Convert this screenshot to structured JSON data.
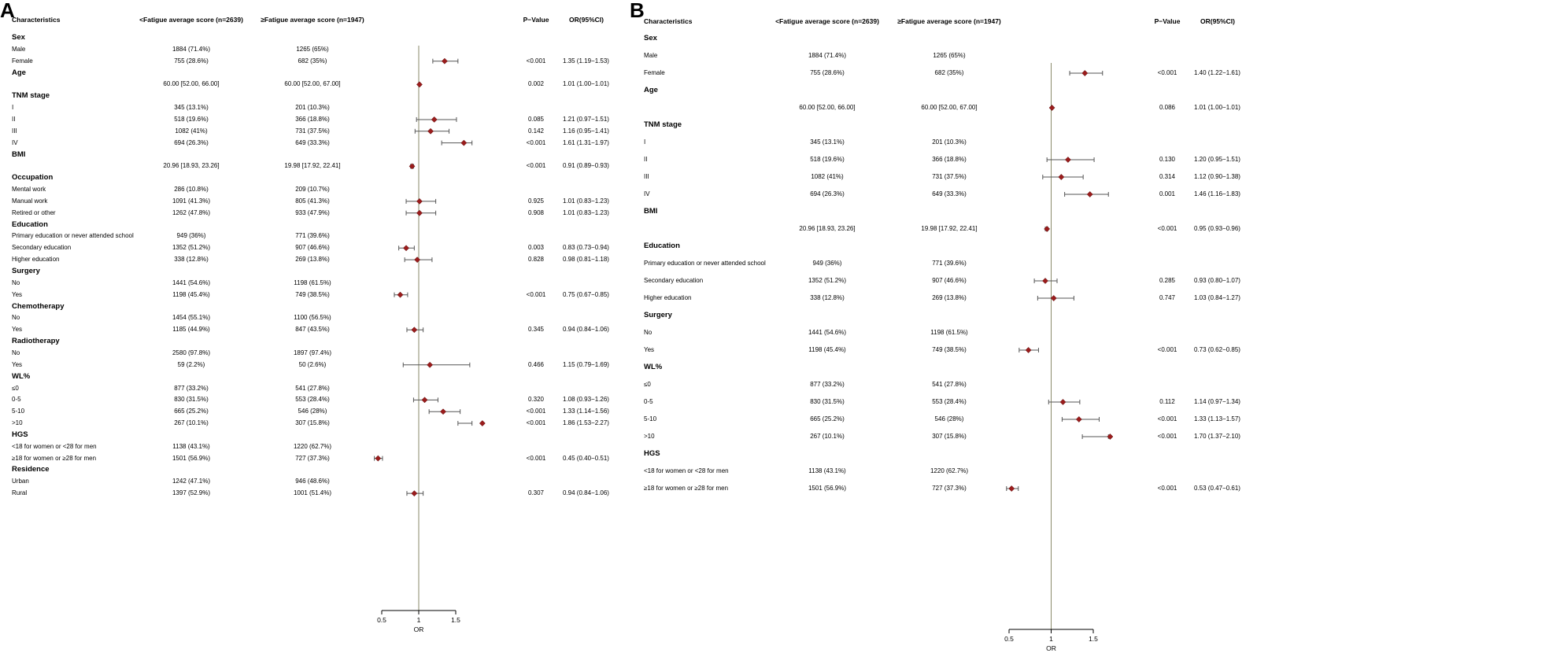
{
  "marker_color": "#9b1c1c",
  "ci_color": "#555555",
  "ref_line_color": "#8a8a6a",
  "panels": [
    {
      "letter": "A",
      "headers": {
        "characteristics": "Characteristics",
        "low": "<Fatigue average score (n=2639)",
        "high": "≥Fatigue average score (n=1947)",
        "p": "P−Value",
        "or": "OR(95%CI)"
      },
      "axis": {
        "label": "OR",
        "ticks": [
          "0.5",
          "1",
          "1.5"
        ],
        "range": [
          0.5,
          1.5
        ]
      },
      "rows": [
        {
          "label": "Sex",
          "section": true
        },
        {
          "label": "Male",
          "low": "1884 (71.4%)",
          "high": "1265 (65%)"
        },
        {
          "label": "Female",
          "low": "755 (28.6%)",
          "high": "682 (35%)",
          "p": "<0.001",
          "or_text": "1.35 (1.19−1.53)"
        },
        {
          "label": "Age",
          "section": true
        },
        {
          "label": "",
          "low": "60.00 [52.00, 66.00]",
          "high": "60.00 [52.00, 67.00]",
          "p": "0.002",
          "or_text": "1.01 (1.00−1.01)"
        },
        {
          "label": "TNM stage",
          "section": true
        },
        {
          "label": "I",
          "low": "345 (13.1%)",
          "high": "201 (10.3%)"
        },
        {
          "label": "II",
          "low": "518 (19.6%)",
          "high": "366 (18.8%)",
          "p": "0.085",
          "or_text": "1.21 (0.97−1.51)"
        },
        {
          "label": "III",
          "low": "1082 (41%)",
          "high": "731 (37.5%)",
          "p": "0.142",
          "or_text": "1.16 (0.95−1.41)"
        },
        {
          "label": "IV",
          "low": "694 (26.3%)",
          "high": "649 (33.3%)",
          "p": "<0.001",
          "or_text": "1.61 (1.31−1.97)"
        },
        {
          "label": "BMI",
          "section": true
        },
        {
          "label": "",
          "low": "20.96 [18.93, 23.26]",
          "high": "19.98 [17.92, 22.41]",
          "p": "<0.001",
          "or_text": "0.91 (0.89−0.93)"
        },
        {
          "label": "Occupation",
          "section": true
        },
        {
          "label": "Mental work",
          "low": "286 (10.8%)",
          "high": "209 (10.7%)"
        },
        {
          "label": "Manual work",
          "low": "1091 (41.3%)",
          "high": "805 (41.3%)",
          "p": "0.925",
          "or_text": "1.01 (0.83−1.23)"
        },
        {
          "label": "Retired or other",
          "low": "1262 (47.8%)",
          "high": "933 (47.9%)",
          "p": "0.908",
          "or_text": "1.01 (0.83−1.23)"
        },
        {
          "label": "Education",
          "section": true
        },
        {
          "label": "Primary education or never attended school",
          "low": "949 (36%)",
          "high": "771 (39.6%)"
        },
        {
          "label": "Secondary education",
          "low": "1352 (51.2%)",
          "high": "907 (46.6%)",
          "p": "0.003",
          "or_text": "0.83 (0.73−0.94)"
        },
        {
          "label": "Higher education",
          "low": "338 (12.8%)",
          "high": "269 (13.8%)",
          "p": "0.828",
          "or_text": "0.98 (0.81−1.18)"
        },
        {
          "label": "Surgery",
          "section": true
        },
        {
          "label": "No",
          "low": "1441 (54.6%)",
          "high": "1198 (61.5%)"
        },
        {
          "label": "Yes",
          "low": "1198 (45.4%)",
          "high": "749 (38.5%)",
          "p": "<0.001",
          "or_text": "0.75 (0.67−0.85)"
        },
        {
          "label": "Chemotherapy",
          "section": true
        },
        {
          "label": "No",
          "low": "1454 (55.1%)",
          "high": "1100 (56.5%)"
        },
        {
          "label": "Yes",
          "low": "1185 (44.9%)",
          "high": "847 (43.5%)",
          "p": "0.345",
          "or_text": "0.94 (0.84−1.06)"
        },
        {
          "label": "Radiotherapy",
          "section": true
        },
        {
          "label": "No",
          "low": "2580 (97.8%)",
          "high": "1897 (97.4%)"
        },
        {
          "label": "Yes",
          "low": "59 (2.2%)",
          "high": "50 (2.6%)",
          "p": "0.466",
          "or_text": "1.15 (0.79−1.69)"
        },
        {
          "label": "WL%",
          "section": true
        },
        {
          "label": "≤0",
          "low": "877 (33.2%)",
          "high": "541 (27.8%)"
        },
        {
          "label": "0-5",
          "low": "830 (31.5%)",
          "high": "553 (28.4%)",
          "p": "0.320",
          "or_text": "1.08 (0.93−1.26)"
        },
        {
          "label": "5-10",
          "low": "665 (25.2%)",
          "high": "546 (28%)",
          "p": "<0.001",
          "or_text": "1.33 (1.14−1.56)"
        },
        {
          "label": ">10",
          "low": "267 (10.1%)",
          "high": "307 (15.8%)",
          "p": "<0.001",
          "or_text": "1.86 (1.53−2.27)"
        },
        {
          "label": "HGS",
          "section": true
        },
        {
          "label": "<18 for women or <28 for men",
          "low": "1138 (43.1%)",
          "high": "1220 (62.7%)"
        },
        {
          "label": "≥18 for women or ≥28 for men",
          "low": "1501 (56.9%)",
          "high": "727 (37.3%)",
          "p": "<0.001",
          "or_text": "0.45 (0.40−0.51)"
        },
        {
          "label": "Residence",
          "section": true
        },
        {
          "label": "Urban",
          "low": "1242 (47.1%)",
          "high": "946 (48.6%)"
        },
        {
          "label": "Rural",
          "low": "1397 (52.9%)",
          "high": "1001 (51.4%)",
          "p": "0.307",
          "or_text": "0.94 (0.84−1.06)"
        }
      ]
    },
    {
      "letter": "B",
      "headers": {
        "characteristics": "Characteristics",
        "low": "<Fatigue average score (n=2639)",
        "high": "≥Fatigue average score (n=1947)",
        "p": "P−Value",
        "or": "OR(95%CI)"
      },
      "axis": {
        "label": "OR",
        "ticks": [
          "0.5",
          "1",
          "1.5"
        ],
        "range": [
          0.5,
          1.5
        ]
      },
      "rows": [
        {
          "label": "Sex",
          "section": true
        },
        {
          "label": "Male",
          "low": "1884 (71.4%)",
          "high": "1265 (65%)"
        },
        {
          "label": "Female",
          "low": "755 (28.6%)",
          "high": "682 (35%)",
          "p": "<0.001",
          "or_text": "1.40 (1.22−1.61)"
        },
        {
          "label": "Age",
          "section": true
        },
        {
          "label": "",
          "low": "60.00 [52.00, 66.00]",
          "high": "60.00 [52.00, 67.00]",
          "p": "0.086",
          "or_text": "1.01 (1.00−1.01)"
        },
        {
          "label": "TNM stage",
          "section": true
        },
        {
          "label": "I",
          "low": "345 (13.1%)",
          "high": "201 (10.3%)"
        },
        {
          "label": "II",
          "low": "518 (19.6%)",
          "high": "366 (18.8%)",
          "p": "0.130",
          "or_text": "1.20 (0.95−1.51)"
        },
        {
          "label": "III",
          "low": "1082 (41%)",
          "high": "731 (37.5%)",
          "p": "0.314",
          "or_text": "1.12 (0.90−1.38)"
        },
        {
          "label": "IV",
          "low": "694 (26.3%)",
          "high": "649 (33.3%)",
          "p": "0.001",
          "or_text": "1.46 (1.16−1.83)"
        },
        {
          "label": "BMI",
          "section": true
        },
        {
          "label": "",
          "low": "20.96 [18.93, 23.26]",
          "high": "19.98 [17.92, 22.41]",
          "p": "<0.001",
          "or_text": "0.95 (0.93−0.96)"
        },
        {
          "label": "Education",
          "section": true
        },
        {
          "label": "Primary education or never attended school",
          "low": "949 (36%)",
          "high": "771 (39.6%)"
        },
        {
          "label": "Secondary education",
          "low": "1352 (51.2%)",
          "high": "907 (46.6%)",
          "p": "0.285",
          "or_text": "0.93 (0.80−1.07)"
        },
        {
          "label": "Higher education",
          "low": "338 (12.8%)",
          "high": "269 (13.8%)",
          "p": "0.747",
          "or_text": "1.03 (0.84−1.27)"
        },
        {
          "label": "Surgery",
          "section": true
        },
        {
          "label": "No",
          "low": "1441 (54.6%)",
          "high": "1198 (61.5%)"
        },
        {
          "label": "Yes",
          "low": "1198 (45.4%)",
          "high": "749 (38.5%)",
          "p": "<0.001",
          "or_text": "0.73 (0.62−0.85)"
        },
        {
          "label": "WL%",
          "section": true
        },
        {
          "label": "≤0",
          "low": "877 (33.2%)",
          "high": "541 (27.8%)"
        },
        {
          "label": "0-5",
          "low": "830 (31.5%)",
          "high": "553 (28.4%)",
          "p": "0.112",
          "or_text": "1.14 (0.97−1.34)"
        },
        {
          "label": "5-10",
          "low": "665 (25.2%)",
          "high": "546 (28%)",
          "p": "<0.001",
          "or_text": "1.33 (1.13−1.57)"
        },
        {
          "label": ">10",
          "low": "267 (10.1%)",
          "high": "307 (15.8%)",
          "p": "<0.001",
          "or_text": "1.70 (1.37−2.10)"
        },
        {
          "label": "HGS",
          "section": true
        },
        {
          "label": "<18 for women or <28 for men",
          "low": "1138 (43.1%)",
          "high": "1220 (62.7%)"
        },
        {
          "label": "≥18 for women or ≥28 for men",
          "low": "1501 (56.9%)",
          "high": "727 (37.3%)",
          "p": "<0.001",
          "or_text": "0.53 (0.47−0.61)"
        }
      ]
    }
  ],
  "chart_data": [
    {
      "type": "forest",
      "panel": "A",
      "xlabel": "OR",
      "xlim": [
        0.5,
        1.5
      ],
      "reference_line": 1,
      "points": [
        {
          "label": "Female",
          "or": 1.35,
          "lo": 1.19,
          "hi": 1.53
        },
        {
          "label": "Age",
          "or": 1.01,
          "lo": 1.0,
          "hi": 1.01
        },
        {
          "label": "TNM II",
          "or": 1.21,
          "lo": 0.97,
          "hi": 1.51
        },
        {
          "label": "TNM III",
          "or": 1.16,
          "lo": 0.95,
          "hi": 1.41
        },
        {
          "label": "TNM IV",
          "or": 1.61,
          "lo": 1.31,
          "hi": 1.97
        },
        {
          "label": "BMI",
          "or": 0.91,
          "lo": 0.89,
          "hi": 0.93
        },
        {
          "label": "Manual work",
          "or": 1.01,
          "lo": 0.83,
          "hi": 1.23
        },
        {
          "label": "Retired or other",
          "or": 1.01,
          "lo": 0.83,
          "hi": 1.23
        },
        {
          "label": "Secondary education",
          "or": 0.83,
          "lo": 0.73,
          "hi": 0.94
        },
        {
          "label": "Higher education",
          "or": 0.98,
          "lo": 0.81,
          "hi": 1.18
        },
        {
          "label": "Surgery Yes",
          "or": 0.75,
          "lo": 0.67,
          "hi": 0.85
        },
        {
          "label": "Chemotherapy Yes",
          "or": 0.94,
          "lo": 0.84,
          "hi": 1.06
        },
        {
          "label": "Radiotherapy Yes",
          "or": 1.15,
          "lo": 0.79,
          "hi": 1.69
        },
        {
          "label": "WL% 0-5",
          "or": 1.08,
          "lo": 0.93,
          "hi": 1.26
        },
        {
          "label": "WL% 5-10",
          "or": 1.33,
          "lo": 1.14,
          "hi": 1.56
        },
        {
          "label": "WL% >10",
          "or": 1.86,
          "lo": 1.53,
          "hi": 2.27
        },
        {
          "label": "HGS ≥18/≥28",
          "or": 0.45,
          "lo": 0.4,
          "hi": 0.51
        },
        {
          "label": "Rural",
          "or": 0.94,
          "lo": 0.84,
          "hi": 1.06
        }
      ]
    },
    {
      "type": "forest",
      "panel": "B",
      "xlabel": "OR",
      "xlim": [
        0.5,
        1.5
      ],
      "reference_line": 1,
      "points": [
        {
          "label": "Female",
          "or": 1.4,
          "lo": 1.22,
          "hi": 1.61
        },
        {
          "label": "Age",
          "or": 1.01,
          "lo": 1.0,
          "hi": 1.01
        },
        {
          "label": "TNM II",
          "or": 1.2,
          "lo": 0.95,
          "hi": 1.51
        },
        {
          "label": "TNM III",
          "or": 1.12,
          "lo": 0.9,
          "hi": 1.38
        },
        {
          "label": "TNM IV",
          "or": 1.46,
          "lo": 1.16,
          "hi": 1.83
        },
        {
          "label": "BMI",
          "or": 0.95,
          "lo": 0.93,
          "hi": 0.96
        },
        {
          "label": "Secondary education",
          "or": 0.93,
          "lo": 0.8,
          "hi": 1.07
        },
        {
          "label": "Higher education",
          "or": 1.03,
          "lo": 0.84,
          "hi": 1.27
        },
        {
          "label": "Surgery Yes",
          "or": 0.73,
          "lo": 0.62,
          "hi": 0.85
        },
        {
          "label": "WL% 0-5",
          "or": 1.14,
          "lo": 0.97,
          "hi": 1.34
        },
        {
          "label": "WL% 5-10",
          "or": 1.33,
          "lo": 1.13,
          "hi": 1.57
        },
        {
          "label": "WL% >10",
          "or": 1.7,
          "lo": 1.37,
          "hi": 2.1
        },
        {
          "label": "HGS ≥18/≥28",
          "or": 0.53,
          "lo": 0.47,
          "hi": 0.61
        }
      ]
    }
  ]
}
